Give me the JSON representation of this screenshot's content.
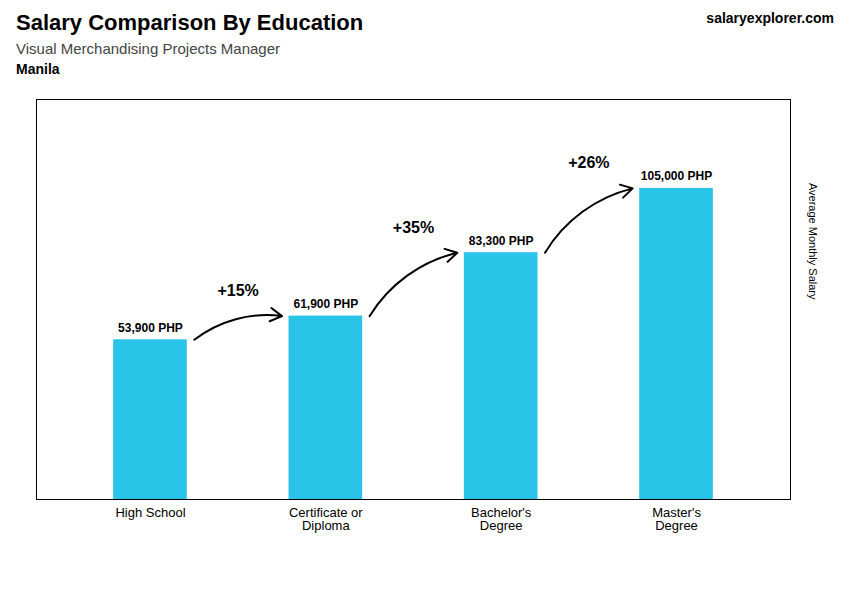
{
  "chart_data": {
    "type": "bar",
    "title": "Salary Comparison By Education",
    "subtitle": "Visual Merchandising Projects Manager",
    "annotations": [
      "Manila",
      "salaryexplorer.com"
    ],
    "ylabel": "Average Monthly Salary",
    "categories": [
      "High School",
      "Certificate or\nDiploma",
      "Bachelor's\nDegree",
      "Master's\nDegree"
    ],
    "values": [
      53900,
      61900,
      83300,
      105000
    ],
    "value_labels": [
      "53,900 PHP",
      "61,900 PHP",
      "83,300 PHP",
      "105,000 PHP"
    ],
    "change_labels": [
      "+15%",
      "+35%",
      "+26%"
    ],
    "data_labels": true,
    "color": "#29c4e8",
    "ylim": [
      0,
      135000
    ],
    "tick_labels": "x",
    "grid": false
  }
}
